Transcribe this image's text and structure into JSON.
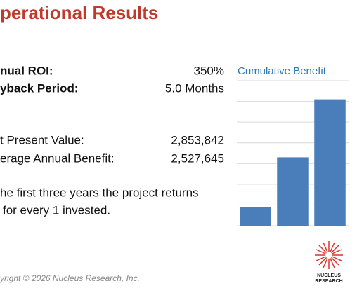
{
  "header": {
    "title": "perational Results"
  },
  "metrics": [
    {
      "label": "nual ROI:",
      "value": "350%"
    },
    {
      "label": "yback Period:",
      "value": "5.0 Months"
    },
    {
      "label": "t Present Value:",
      "value": "2,853,842"
    },
    {
      "label": "erage Annual Benefit:",
      "value": "2,527,645"
    }
  ],
  "note": [
    "he first three years the project returns",
    "for every 1 invested."
  ],
  "footer": {
    "copyright": "yright © 2026 Nucleus Research, Inc.",
    "logo_line1": "NUCLEUS",
    "logo_line2": "RESEARCH"
  },
  "chart_data": {
    "type": "bar",
    "title": "Cumulative Benefit",
    "categories": [
      null,
      null,
      null
    ],
    "values": [
      0.9,
      3.3,
      6.1
    ],
    "color": "#4a7ebb",
    "ylim": [
      0,
      7
    ],
    "yticks": [
      0,
      1,
      2,
      3,
      4,
      5,
      6,
      7
    ],
    "grid": true
  }
}
